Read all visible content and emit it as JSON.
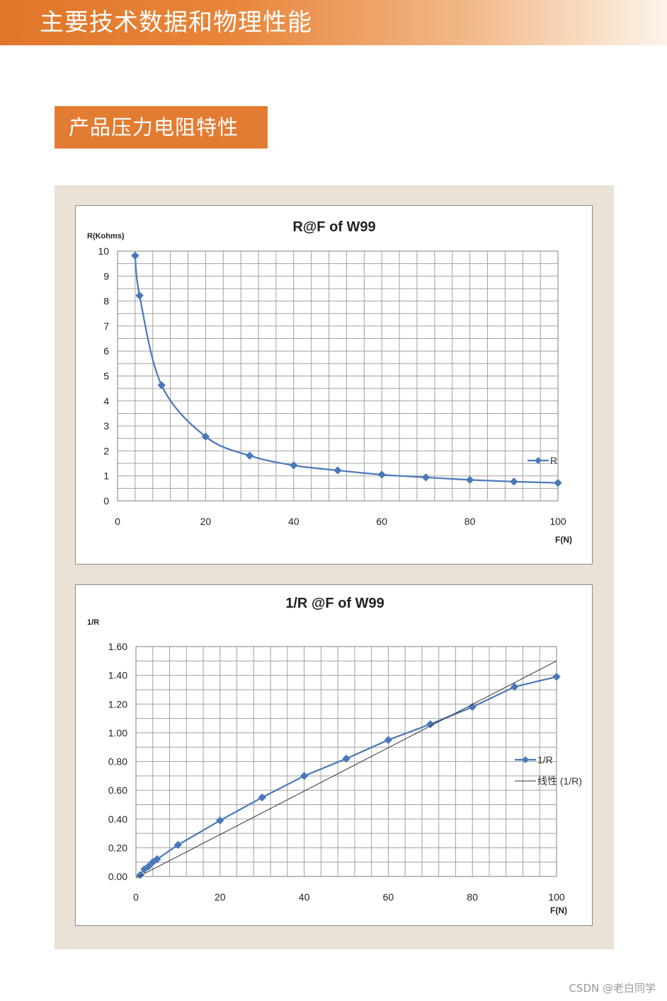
{
  "header": {
    "title": "主要技术数据和物理性能"
  },
  "section": {
    "title": "产品压力电阻特性"
  },
  "colors": {
    "accent": "#e37c33",
    "series": "#4a78b8",
    "grid": "#a0a0a0",
    "panel": "#e9e2d5"
  },
  "watermark": "CSDN @老白同学",
  "chart_data": [
    {
      "type": "line",
      "title": "R@F of  W99",
      "ylabel": "R(Kohms)",
      "xlabel": "F(N)",
      "xlim": [
        0,
        100
      ],
      "ylim": [
        0,
        10
      ],
      "x_ticks": [
        0,
        20,
        40,
        60,
        80,
        100
      ],
      "x_tick_labels": [
        "0",
        "20",
        "40",
        "60",
        "80",
        "100"
      ],
      "y_ticks": [
        0,
        1,
        2,
        3,
        4,
        5,
        6,
        7,
        8,
        9,
        10
      ],
      "y_tick_labels": [
        "0",
        "1",
        "2",
        "3",
        "4",
        "5",
        "6",
        "7",
        "8",
        "9",
        "10"
      ],
      "grid": true,
      "legend_position": "right",
      "series": [
        {
          "name": "R",
          "marker": "diamond",
          "smooth": true,
          "x": [
            4,
            5,
            10,
            20,
            30,
            40,
            50,
            60,
            70,
            80,
            90,
            100
          ],
          "y": [
            9.82,
            8.22,
            4.63,
            2.57,
            1.81,
            1.42,
            1.22,
            1.05,
            0.94,
            0.84,
            0.77,
            0.72
          ]
        }
      ]
    },
    {
      "type": "line",
      "title": "1/R @F of  W99",
      "ylabel": "1/R",
      "xlabel": "F(N)",
      "xlim": [
        0,
        100
      ],
      "ylim": [
        0,
        1.6
      ],
      "x_ticks": [
        0,
        20,
        40,
        60,
        80,
        100
      ],
      "x_tick_labels": [
        "0",
        "20",
        "40",
        "60",
        "80",
        "100"
      ],
      "y_ticks": [
        0,
        0.2,
        0.4,
        0.6,
        0.8,
        1.0,
        1.2,
        1.4,
        1.6
      ],
      "y_tick_labels": [
        "0.00",
        "0.20",
        "0.40",
        "0.60",
        "0.80",
        "1.00",
        "1.20",
        "1.40",
        "1.60"
      ],
      "grid": true,
      "legend_position": "right",
      "series": [
        {
          "name": "1/R",
          "marker": "diamond",
          "x": [
            1,
            2,
            3,
            4,
            5,
            10,
            20,
            30,
            40,
            50,
            60,
            70,
            80,
            90,
            100
          ],
          "y": [
            0.01,
            0.05,
            0.07,
            0.1,
            0.12,
            0.22,
            0.39,
            0.55,
            0.7,
            0.82,
            0.95,
            1.06,
            1.18,
            1.32,
            1.39
          ]
        },
        {
          "name": "线性 (1/R)",
          "marker": "none",
          "x": [
            0,
            100
          ],
          "y": [
            -0.01,
            1.5
          ]
        }
      ]
    }
  ]
}
